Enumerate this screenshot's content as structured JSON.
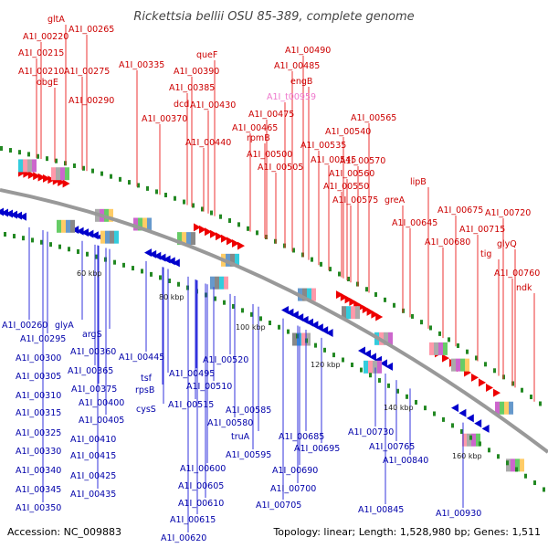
{
  "title": "Rickettsia bellii OSU 85-389, complete genome",
  "footer": {
    "accession": "Accession: NC_009883",
    "summary": "Topology: linear; Length: 1,528,980 bp; Genes: 1,511"
  },
  "colors": {
    "forward": "#ee0000",
    "reverse": "#0000cc",
    "rna": "#ee66cc",
    "backbone": "#999999",
    "tick_mark": "#228822"
  },
  "ticks": [
    "60 kbp",
    "80 kbp",
    "100 kbp",
    "120 kbp",
    "140 kbp",
    "160 kbp"
  ],
  "top_labels": [
    {
      "text": "gltA",
      "color": "#cc0000"
    },
    {
      "text": "A1I_00265",
      "color": "#cc0000"
    },
    {
      "text": "A1I_00220",
      "color": "#cc0000"
    },
    {
      "text": "A1I_00215",
      "color": "#cc0000"
    },
    {
      "text": "A1I_00210",
      "color": "#cc0000"
    },
    {
      "text": "A1I_00275",
      "color": "#cc0000"
    },
    {
      "text": "obgE",
      "color": "#cc0000"
    },
    {
      "text": "A1I_00290",
      "color": "#cc0000"
    },
    {
      "text": "A1I_00335",
      "color": "#cc0000"
    },
    {
      "text": "queF",
      "color": "#cc0000"
    },
    {
      "text": "A1I_00390",
      "color": "#cc0000"
    },
    {
      "text": "A1I_00385",
      "color": "#cc0000"
    },
    {
      "text": "dcd",
      "color": "#cc0000"
    },
    {
      "text": "A1I_00430",
      "color": "#cc0000"
    },
    {
      "text": "A1I_00370",
      "color": "#cc0000"
    },
    {
      "text": "A1I_00440",
      "color": "#cc0000"
    },
    {
      "text": "A1I_00490",
      "color": "#cc0000"
    },
    {
      "text": "A1I_00485",
      "color": "#cc0000"
    },
    {
      "text": "engB",
      "color": "#cc0000"
    },
    {
      "text": "A1I_t00959",
      "color": "#ee77cc"
    },
    {
      "text": "A1I_00475",
      "color": "#cc0000"
    },
    {
      "text": "A1I_00465",
      "color": "#cc0000"
    },
    {
      "text": "rpmB",
      "color": "#cc0000"
    },
    {
      "text": "A1I_00500",
      "color": "#cc0000"
    },
    {
      "text": "A1I_00505",
      "color": "#cc0000"
    },
    {
      "text": "A1I_00565",
      "color": "#cc0000"
    },
    {
      "text": "A1I_00540",
      "color": "#cc0000"
    },
    {
      "text": "A1I_00535",
      "color": "#cc0000"
    },
    {
      "text": "A1I_00545",
      "color": "#cc0000"
    },
    {
      "text": "A1I_00570",
      "color": "#cc0000"
    },
    {
      "text": "A1I_00560",
      "color": "#cc0000"
    },
    {
      "text": "A1I_00550",
      "color": "#cc0000"
    },
    {
      "text": "A1I_00575",
      "color": "#cc0000"
    },
    {
      "text": "greA",
      "color": "#cc0000"
    },
    {
      "text": "lipB",
      "color": "#cc0000"
    },
    {
      "text": "A1I_00645",
      "color": "#cc0000"
    },
    {
      "text": "A1I_00675",
      "color": "#cc0000"
    },
    {
      "text": "A1I_00720",
      "color": "#cc0000"
    },
    {
      "text": "A1I_00715",
      "color": "#cc0000"
    },
    {
      "text": "A1I_00680",
      "color": "#cc0000"
    },
    {
      "text": "glyQ",
      "color": "#cc0000"
    },
    {
      "text": "tig",
      "color": "#cc0000"
    },
    {
      "text": "A1I_00760",
      "color": "#cc0000"
    },
    {
      "text": "ndk",
      "color": "#cc0000"
    }
  ],
  "bottom_labels": [
    {
      "text": "A1I_00260",
      "color": "#0000aa"
    },
    {
      "text": "glyA",
      "color": "#0000aa"
    },
    {
      "text": "A1I_00295",
      "color": "#0000aa"
    },
    {
      "text": "argS",
      "color": "#0000aa"
    },
    {
      "text": "A1I_00360",
      "color": "#0000aa"
    },
    {
      "text": "A1I_00300",
      "color": "#0000aa"
    },
    {
      "text": "A1I_00305",
      "color": "#0000aa"
    },
    {
      "text": "A1I_00365",
      "color": "#0000aa"
    },
    {
      "text": "A1I_00310",
      "color": "#0000aa"
    },
    {
      "text": "A1I_00375",
      "color": "#0000aa"
    },
    {
      "text": "A1I_00315",
      "color": "#0000aa"
    },
    {
      "text": "A1I_00400",
      "color": "#0000aa"
    },
    {
      "text": "A1I_00405",
      "color": "#0000aa"
    },
    {
      "text": "A1I_00325",
      "color": "#0000aa"
    },
    {
      "text": "A1I_00410",
      "color": "#0000aa"
    },
    {
      "text": "A1I_00330",
      "color": "#0000aa"
    },
    {
      "text": "A1I_00415",
      "color": "#0000aa"
    },
    {
      "text": "A1I_00340",
      "color": "#0000aa"
    },
    {
      "text": "A1I_00425",
      "color": "#0000aa"
    },
    {
      "text": "A1I_00345",
      "color": "#0000aa"
    },
    {
      "text": "A1I_00435",
      "color": "#0000aa"
    },
    {
      "text": "A1I_00350",
      "color": "#0000aa"
    },
    {
      "text": "A1I_00445",
      "color": "#0000aa"
    },
    {
      "text": "tsf",
      "color": "#0000aa"
    },
    {
      "text": "rpsB",
      "color": "#0000aa"
    },
    {
      "text": "cysS",
      "color": "#0000aa"
    },
    {
      "text": "A1I_00495",
      "color": "#0000aa"
    },
    {
      "text": "A1I_00510",
      "color": "#0000aa"
    },
    {
      "text": "A1I_00515",
      "color": "#0000aa"
    },
    {
      "text": "A1I_00520",
      "color": "#0000aa"
    },
    {
      "text": "A1I_00585",
      "color": "#0000aa"
    },
    {
      "text": "A1I_00580",
      "color": "#0000aa"
    },
    {
      "text": "truA",
      "color": "#0000aa"
    },
    {
      "text": "A1I_00595",
      "color": "#0000aa"
    },
    {
      "text": "A1I_00600",
      "color": "#0000aa"
    },
    {
      "text": "A1I_00605",
      "color": "#0000aa"
    },
    {
      "text": "A1I_00610",
      "color": "#0000aa"
    },
    {
      "text": "A1I_00615",
      "color": "#0000aa"
    },
    {
      "text": "A1I_00620",
      "color": "#0000aa"
    },
    {
      "text": "A1I_00685",
      "color": "#0000aa"
    },
    {
      "text": "A1I_00695",
      "color": "#0000aa"
    },
    {
      "text": "A1I_00690",
      "color": "#0000aa"
    },
    {
      "text": "A1I_00700",
      "color": "#0000aa"
    },
    {
      "text": "A1I_00705",
      "color": "#0000aa"
    },
    {
      "text": "A1I_00730",
      "color": "#0000aa"
    },
    {
      "text": "A1I_00765",
      "color": "#0000aa"
    },
    {
      "text": "A1I_00840",
      "color": "#0000aa"
    },
    {
      "text": "A1I_00845",
      "color": "#0000aa"
    },
    {
      "text": "A1I_00930",
      "color": "#0000aa"
    }
  ]
}
